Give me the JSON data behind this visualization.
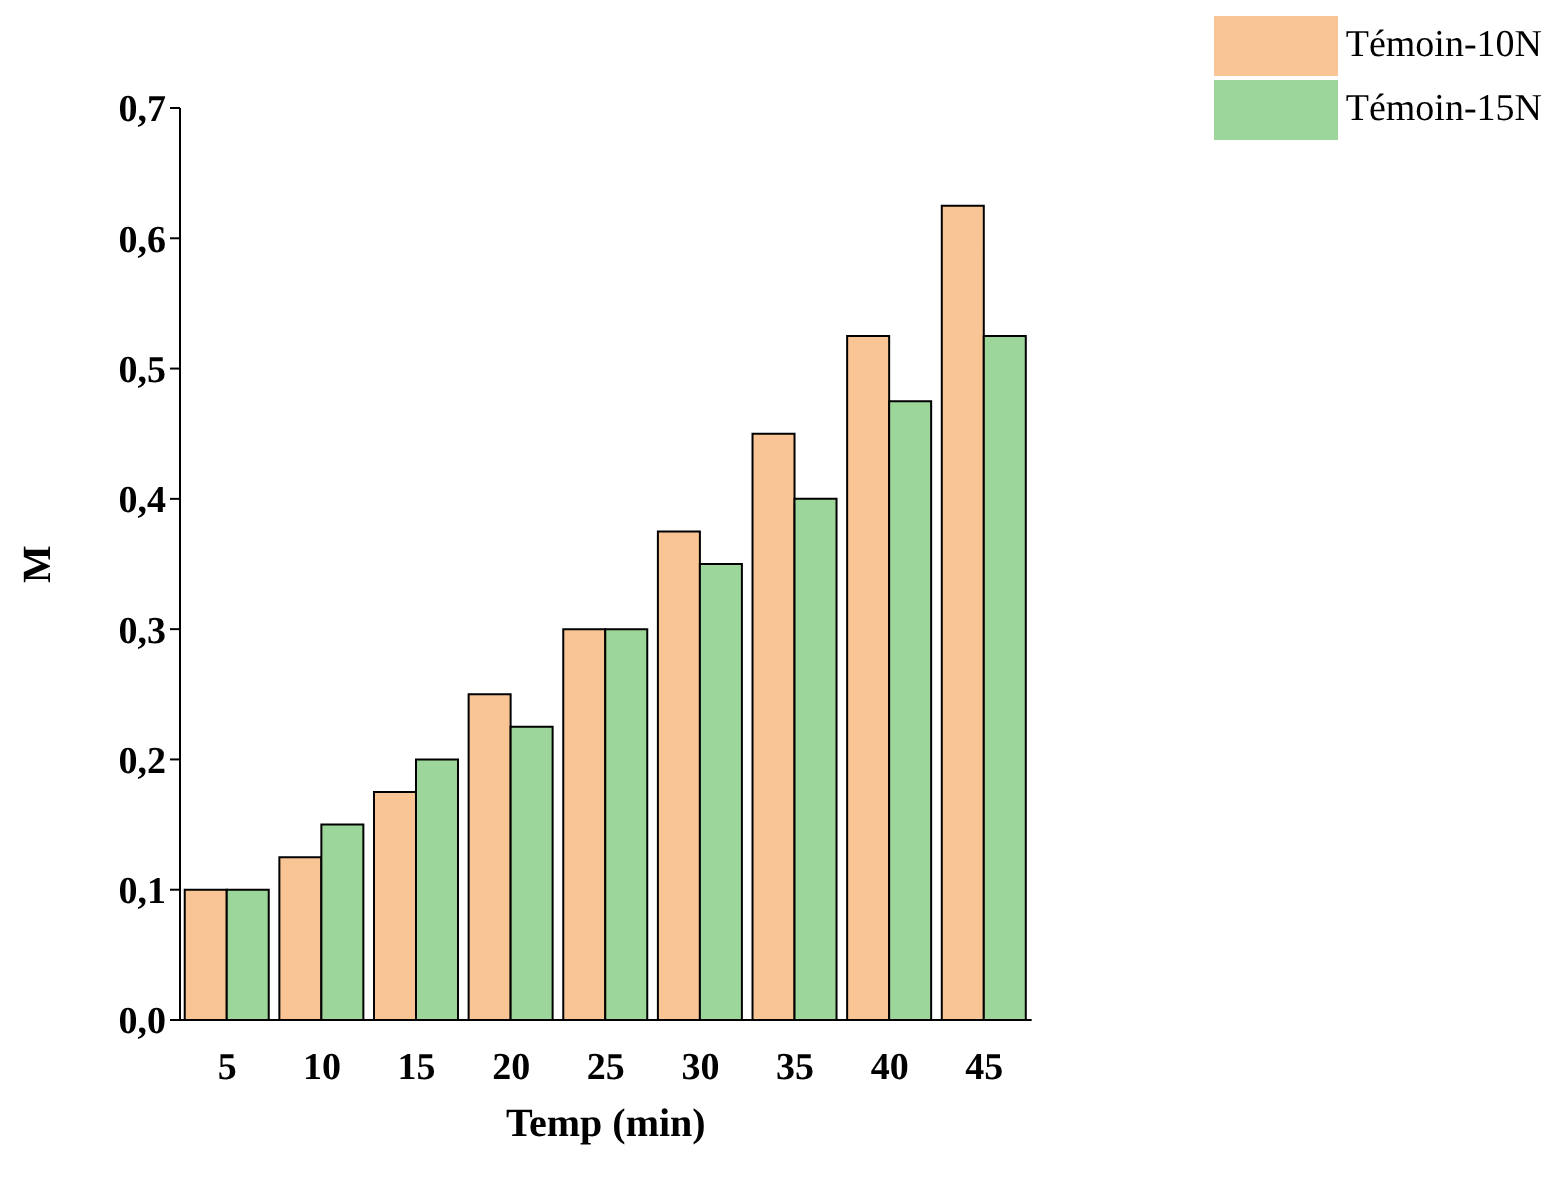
{
  "chart_data": {
    "type": "bar",
    "xlabel": "Temp (min)",
    "ylabel": "M",
    "categories": [
      "5",
      "10",
      "15",
      "20",
      "25",
      "30",
      "35",
      "40",
      "45"
    ],
    "series": [
      {
        "name": "Témoin-10N",
        "color": "#f9c594",
        "values": [
          0.1,
          0.125,
          0.175,
          0.25,
          0.3,
          0.375,
          0.45,
          0.525,
          0.625
        ]
      },
      {
        "name": "Témoin-15N",
        "color": "#9dd69a",
        "values": [
          0.1,
          0.15,
          0.2,
          0.225,
          0.3,
          0.35,
          0.4,
          0.475,
          0.525
        ]
      }
    ],
    "ylim": [
      0,
      0.7
    ],
    "yticks": [
      {
        "value": 0,
        "label": "0,0"
      },
      {
        "value": 0.1,
        "label": "0,1"
      },
      {
        "value": 0.2,
        "label": "0,2"
      },
      {
        "value": 0.3,
        "label": "0,3"
      },
      {
        "value": 0.4,
        "label": "0,4"
      },
      {
        "value": 0.5,
        "label": "0,5"
      },
      {
        "value": 0.6,
        "label": "0,6"
      },
      {
        "value": 0.7,
        "label": "0,7"
      }
    ],
    "grid": false,
    "legend": "top right"
  }
}
